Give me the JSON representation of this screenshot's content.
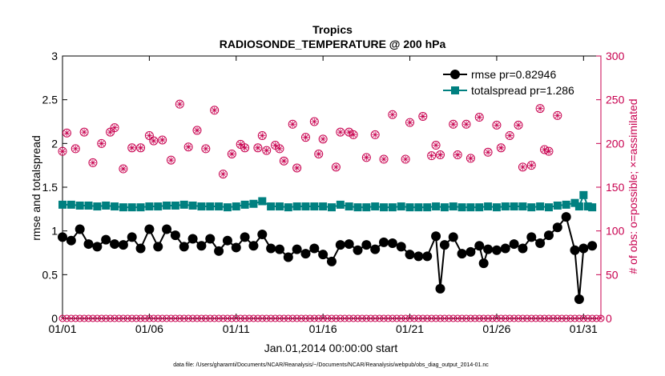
{
  "chart_data": {
    "type": "line",
    "title": "Tropics",
    "subtitle": "RADIOSONDE_TEMPERATURE @ 200 hPa",
    "xlabel": "Jan.01,2014 00:00:00 start",
    "ylabel": "rmse and totalspread",
    "y2label": "# of obs: o=possible; ×=assimilated",
    "footnote": "data file: /Users/gharamti/Documents/NCAR/Reanalysis/~/Documents/NCAR/Reanalysis/webpub/obs_diag_output_2014-01.nc",
    "xlim": [
      0,
      31
    ],
    "ylim": [
      0,
      3
    ],
    "y2lim": [
      0,
      300
    ],
    "x_ticks": [
      0,
      5,
      10,
      15,
      20,
      25,
      30
    ],
    "x_tick_labels": [
      "01/01",
      "01/06",
      "01/11",
      "01/16",
      "01/21",
      "01/26",
      "01/31"
    ],
    "y_ticks": [
      0,
      0.5,
      1,
      1.5,
      2,
      2.5,
      3
    ],
    "y_tick_labels": [
      "0",
      "0.5",
      "1",
      "1.5",
      "2",
      "2.5",
      "3"
    ],
    "y2_ticks": [
      0,
      50,
      100,
      150,
      200,
      250,
      300
    ],
    "y2_tick_labels": [
      "0",
      "50",
      "100",
      "150",
      "200",
      "250",
      "300"
    ],
    "legend": [
      "rmse pr=0.82946",
      "totalspread pr=1.286"
    ],
    "legend_position": "top-right",
    "colors": {
      "rmse": "#000000",
      "spread": "#008080",
      "obs": "#c8004f",
      "axis": "#000000"
    },
    "x": [
      0,
      0.25,
      0.5,
      0.75,
      1,
      1.25,
      1.5,
      1.75,
      2,
      2.25,
      2.5,
      2.75,
      3,
      3.25,
      3.5,
      3.75,
      4,
      4.25,
      4.5,
      4.75,
      5,
      5.25,
      5.5,
      5.75,
      6,
      6.25,
      6.5,
      6.75,
      7,
      7.25,
      7.5,
      7.75,
      8,
      8.25,
      8.5,
      8.75,
      9,
      9.25,
      9.5,
      9.75,
      10,
      10.25,
      10.5,
      10.75,
      11,
      11.25,
      11.5,
      11.75,
      12,
      12.25,
      12.5,
      12.75,
      13,
      13.25,
      13.5,
      13.75,
      14,
      14.25,
      14.5,
      14.75,
      15,
      15.25,
      15.5,
      15.75,
      16,
      16.25,
      16.5,
      16.75,
      17,
      17.25,
      17.5,
      17.75,
      18,
      18.25,
      18.5,
      18.75,
      19,
      19.25,
      19.5,
      19.75,
      20,
      20.25,
      20.5,
      20.75,
      21,
      21.25,
      21.5,
      21.75,
      22,
      22.25,
      22.5,
      22.75,
      23,
      23.25,
      23.5,
      23.75,
      24,
      24.25,
      24.5,
      24.75,
      25,
      25.25,
      25.5,
      25.75,
      26,
      26.25,
      26.5,
      26.75,
      27,
      27.25,
      27.5,
      27.75,
      28,
      28.25,
      28.5,
      28.75,
      29,
      29.25,
      29.5,
      29.75,
      30,
      30.25,
      30.5,
      30.75,
      31
    ],
    "series": [
      {
        "name": "rmse pr=0.82946",
        "axis": "left",
        "marker": "circle",
        "points": [
          [
            0,
            0.93
          ],
          [
            0.5,
            0.89
          ],
          [
            1,
            1.02
          ],
          [
            1.5,
            0.85
          ],
          [
            2,
            0.82
          ],
          [
            2.5,
            0.9
          ],
          [
            3,
            0.85
          ],
          [
            3.5,
            0.84
          ],
          [
            4,
            0.93
          ],
          [
            4.5,
            0.8
          ],
          [
            5,
            1.02
          ],
          [
            5.5,
            0.82
          ],
          [
            6,
            1.02
          ],
          [
            6.5,
            0.95
          ],
          [
            7,
            0.82
          ],
          [
            7.5,
            0.91
          ],
          [
            8,
            0.83
          ],
          [
            8.5,
            0.91
          ],
          [
            9,
            0.77
          ],
          [
            9.5,
            0.89
          ],
          [
            10,
            0.81
          ],
          [
            10.5,
            0.93
          ],
          [
            11,
            0.83
          ],
          [
            11.5,
            0.96
          ],
          [
            12,
            0.8
          ],
          [
            12.5,
            0.79
          ],
          [
            13,
            0.7
          ],
          [
            13.5,
            0.79
          ],
          [
            14,
            0.74
          ],
          [
            14.5,
            0.8
          ],
          [
            15,
            0.73
          ],
          [
            15.5,
            0.65
          ],
          [
            16,
            0.84
          ],
          [
            16.5,
            0.85
          ],
          [
            17,
            0.78
          ],
          [
            17.5,
            0.84
          ],
          [
            18,
            0.79
          ],
          [
            18.5,
            0.87
          ],
          [
            19,
            0.86
          ],
          [
            19.5,
            0.82
          ],
          [
            20,
            0.73
          ],
          [
            20.5,
            0.71
          ],
          [
            21,
            0.71
          ],
          [
            21.5,
            0.94
          ],
          [
            21.75,
            0.34
          ],
          [
            22,
            0.84
          ],
          [
            22.5,
            0.93
          ],
          [
            23,
            0.74
          ],
          [
            23.5,
            0.76
          ],
          [
            24,
            0.83
          ],
          [
            24.25,
            0.63
          ],
          [
            24.5,
            0.79
          ],
          [
            25,
            0.78
          ],
          [
            25.5,
            0.8
          ],
          [
            26,
            0.85
          ],
          [
            26.5,
            0.8
          ],
          [
            27,
            0.93
          ],
          [
            27.5,
            0.86
          ],
          [
            28,
            0.95
          ],
          [
            28.5,
            1.04
          ],
          [
            29,
            1.16
          ],
          [
            29.5,
            0.78
          ],
          [
            29.75,
            0.22
          ],
          [
            30,
            0.8
          ],
          [
            30.5,
            0.83
          ]
        ]
      },
      {
        "name": "totalspread pr=1.286",
        "axis": "left",
        "marker": "square",
        "points": [
          [
            0,
            1.3
          ],
          [
            0.5,
            1.3
          ],
          [
            1,
            1.29
          ],
          [
            1.5,
            1.29
          ],
          [
            2,
            1.28
          ],
          [
            2.5,
            1.29
          ],
          [
            3,
            1.28
          ],
          [
            3.5,
            1.27
          ],
          [
            4,
            1.27
          ],
          [
            4.5,
            1.27
          ],
          [
            5,
            1.28
          ],
          [
            5.5,
            1.28
          ],
          [
            6,
            1.29
          ],
          [
            6.5,
            1.29
          ],
          [
            7,
            1.3
          ],
          [
            7.5,
            1.29
          ],
          [
            8,
            1.28
          ],
          [
            8.5,
            1.28
          ],
          [
            9,
            1.28
          ],
          [
            9.5,
            1.27
          ],
          [
            10,
            1.28
          ],
          [
            10.5,
            1.3
          ],
          [
            11,
            1.31
          ],
          [
            11.5,
            1.34
          ],
          [
            12,
            1.28
          ],
          [
            12.5,
            1.28
          ],
          [
            13,
            1.27
          ],
          [
            13.5,
            1.28
          ],
          [
            14,
            1.28
          ],
          [
            14.5,
            1.28
          ],
          [
            15,
            1.28
          ],
          [
            15.5,
            1.27
          ],
          [
            16,
            1.3
          ],
          [
            16.5,
            1.28
          ],
          [
            17,
            1.27
          ],
          [
            17.5,
            1.27
          ],
          [
            18,
            1.28
          ],
          [
            18.5,
            1.27
          ],
          [
            19,
            1.27
          ],
          [
            19.5,
            1.28
          ],
          [
            20,
            1.27
          ],
          [
            20.5,
            1.27
          ],
          [
            21,
            1.27
          ],
          [
            21.5,
            1.28
          ],
          [
            22,
            1.27
          ],
          [
            22.5,
            1.28
          ],
          [
            23,
            1.27
          ],
          [
            23.5,
            1.27
          ],
          [
            24,
            1.27
          ],
          [
            24.5,
            1.28
          ],
          [
            25,
            1.27
          ],
          [
            25.5,
            1.28
          ],
          [
            26,
            1.28
          ],
          [
            26.5,
            1.28
          ],
          [
            27,
            1.27
          ],
          [
            27.5,
            1.28
          ],
          [
            28,
            1.27
          ],
          [
            28.5,
            1.29
          ],
          [
            29,
            1.3
          ],
          [
            29.5,
            1.32
          ],
          [
            29.75,
            1.28
          ],
          [
            30,
            1.41
          ],
          [
            30.25,
            1.28
          ],
          [
            30.5,
            1.27
          ]
        ]
      }
    ],
    "obs_possible": {
      "name": "# of obs possible",
      "axis": "right",
      "marker": "circle-open",
      "points": [
        [
          0,
          191
        ],
        [
          0.25,
          212
        ],
        [
          0.75,
          194
        ],
        [
          1.25,
          213
        ],
        [
          1.75,
          178
        ],
        [
          2.25,
          200
        ],
        [
          2.75,
          213
        ],
        [
          3,
          218
        ],
        [
          3.5,
          171
        ],
        [
          4,
          195
        ],
        [
          4.5,
          195
        ],
        [
          5,
          209
        ],
        [
          5.25,
          203
        ],
        [
          5.75,
          204
        ],
        [
          6.25,
          181
        ],
        [
          6.75,
          245
        ],
        [
          7.25,
          196
        ],
        [
          7.75,
          215
        ],
        [
          8.25,
          194
        ],
        [
          8.75,
          238
        ],
        [
          9.25,
          165
        ],
        [
          9.75,
          188
        ],
        [
          10.25,
          199
        ],
        [
          10.5,
          195
        ],
        [
          11.25,
          195
        ],
        [
          11.5,
          209
        ],
        [
          11.75,
          192
        ],
        [
          12.25,
          198
        ],
        [
          12.5,
          194
        ],
        [
          12.75,
          180
        ],
        [
          13.25,
          222
        ],
        [
          13.5,
          172
        ],
        [
          14,
          207
        ],
        [
          14.5,
          225
        ],
        [
          14.75,
          188
        ],
        [
          15,
          205
        ],
        [
          15.75,
          173
        ],
        [
          16,
          213
        ],
        [
          16.5,
          213
        ],
        [
          16.75,
          210
        ],
        [
          17.5,
          184
        ],
        [
          18,
          210
        ],
        [
          18.5,
          182
        ],
        [
          19,
          233
        ],
        [
          19.75,
          182
        ],
        [
          20,
          224
        ],
        [
          20.75,
          231
        ],
        [
          21.25,
          186
        ],
        [
          21.5,
          198
        ],
        [
          21.75,
          187
        ],
        [
          22.5,
          222
        ],
        [
          22.75,
          187
        ],
        [
          23.25,
          222
        ],
        [
          23.5,
          183
        ],
        [
          24,
          230
        ],
        [
          24.5,
          190
        ],
        [
          25,
          221
        ],
        [
          25.25,
          195
        ],
        [
          25.75,
          209
        ],
        [
          26.25,
          221
        ],
        [
          26.5,
          173
        ],
        [
          27,
          175
        ],
        [
          27.5,
          240
        ],
        [
          27.75,
          193
        ],
        [
          28,
          191
        ],
        [
          28.5,
          232
        ]
      ]
    },
    "obs_assimilated_baseline": 0
  }
}
